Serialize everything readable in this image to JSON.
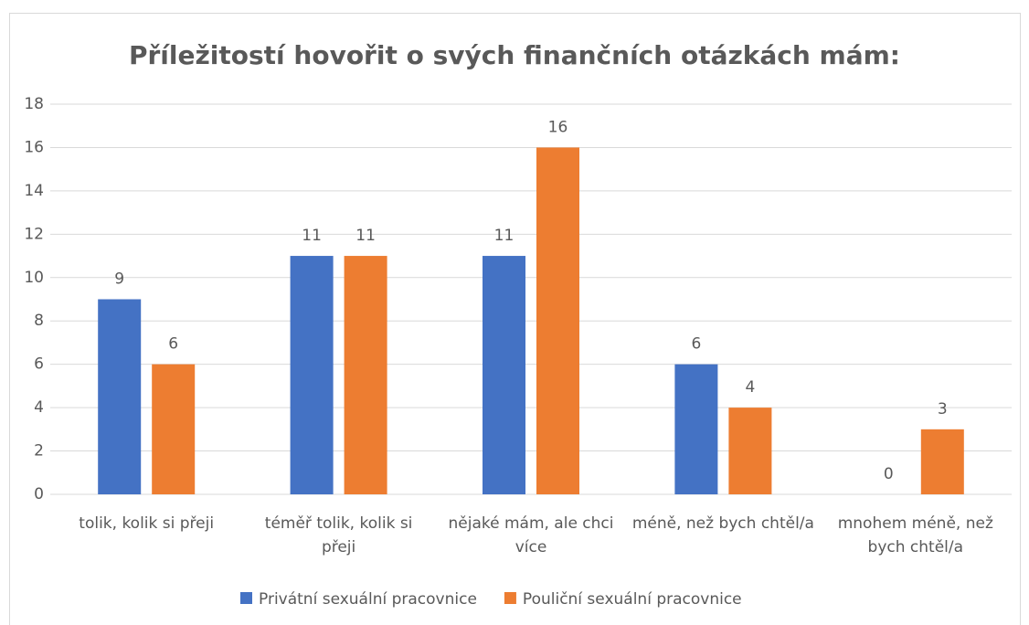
{
  "chart_data": {
    "type": "bar",
    "title": "Příležitostí hovořit o svých finančních otázkách mám:",
    "categories": [
      "tolik, kolik si přeji",
      "téměř tolik, kolik si přeji",
      "nějaké mám, ale chci více",
      "méně, než bych chtěl/a",
      "mnohem méně, než bych chtěl/a"
    ],
    "series": [
      {
        "name": "Privátní sexuální pracovnice",
        "color": "#4472c4",
        "values": [
          9,
          11,
          11,
          6,
          0
        ]
      },
      {
        "name": "Pouliční sexuální pracovnice",
        "color": "#ed7d31",
        "values": [
          6,
          11,
          16,
          4,
          3
        ]
      }
    ],
    "ylim": [
      0,
      18
    ],
    "yticks": [
      0,
      2,
      4,
      6,
      8,
      10,
      12,
      14,
      16,
      18
    ],
    "grid": true,
    "legend": "bottom"
  }
}
